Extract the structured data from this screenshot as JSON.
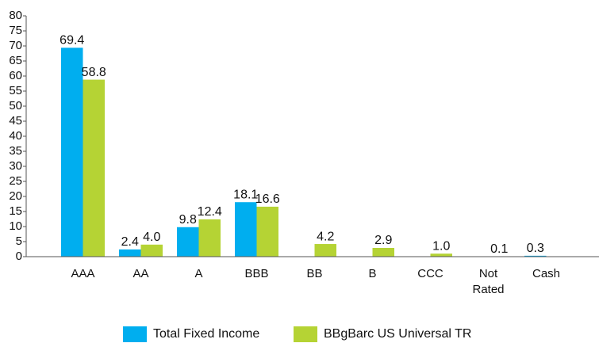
{
  "chart_data": {
    "type": "bar",
    "categories": [
      "AAA",
      "AA",
      "A",
      "BBB",
      "BB",
      "B",
      "CCC",
      "Not Rated",
      "Cash"
    ],
    "series": [
      {
        "name": "Total Fixed Income",
        "color": "#00aeef",
        "values": [
          69.4,
          2.4,
          9.8,
          18.1,
          null,
          null,
          null,
          null,
          0.3
        ],
        "value_labels": [
          "69.4",
          "2.4",
          "9.8",
          "18.1",
          null,
          null,
          null,
          null,
          "0.3"
        ]
      },
      {
        "name": "BBgBarc US Universal TR",
        "color": "#b5d334",
        "values": [
          58.8,
          4.0,
          12.4,
          16.6,
          4.2,
          2.9,
          1.0,
          0.1,
          null
        ],
        "value_labels": [
          "58.8",
          "4.0",
          "12.4",
          "16.6",
          "4.2",
          "2.9",
          "1.0",
          "0.1",
          null
        ]
      }
    ],
    "ylim": [
      0,
      80
    ],
    "yticks": [
      0,
      5,
      10,
      15,
      20,
      25,
      30,
      35,
      40,
      45,
      50,
      55,
      60,
      65,
      70,
      75,
      80
    ],
    "grid": false,
    "legend": "bottom"
  }
}
